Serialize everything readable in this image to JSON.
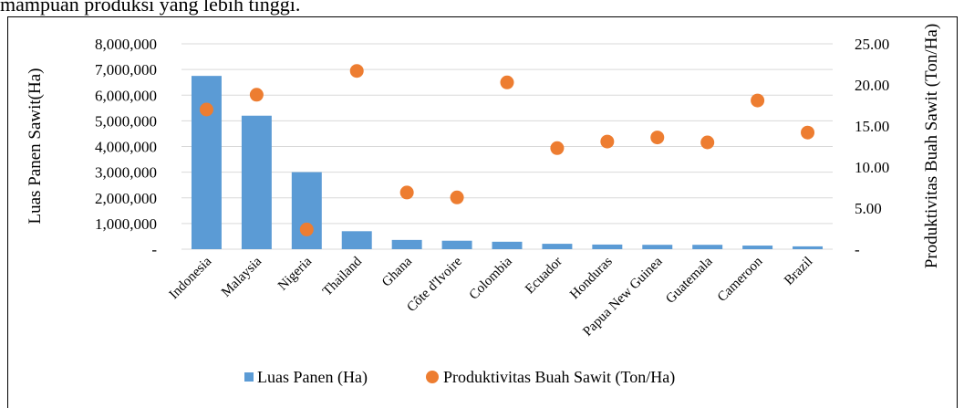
{
  "page_text": "mampuan produksi yang lebih tinggi.",
  "chart_data": {
    "type": "bar_scatter",
    "categories": [
      "Indonesia",
      "Malaysia",
      "Nigeria",
      "Thailand",
      "Ghana",
      "Côte d'Ivoire",
      "Colombia",
      "Ecuador",
      "Honduras",
      "Papua New Guinea",
      "Guatemala",
      "Cameroon",
      "Brazil"
    ],
    "series": [
      {
        "name": "Luas Panen (Ha)",
        "type": "bar",
        "color": "#5b9bd5",
        "axis": "y",
        "values": [
          6750000,
          5200000,
          3000000,
          700000,
          360000,
          330000,
          290000,
          210000,
          180000,
          170000,
          170000,
          140000,
          110000
        ]
      },
      {
        "name": "Produktivitas Buah Sawit (Ton/Ha)",
        "type": "scatter",
        "color": "#ed7d31",
        "axis": "y2",
        "values": [
          17.0,
          18.8,
          2.4,
          21.7,
          6.9,
          6.3,
          20.3,
          12.3,
          13.1,
          13.6,
          13.0,
          18.1,
          14.2
        ]
      }
    ],
    "ylabel": "Luas Panen Sawit(Ha)",
    "y2label": "Produktivitas Buah Sawit (Ton/Ha)",
    "ylim": [
      0,
      8000000
    ],
    "yticks": [
      {
        "value": 0,
        "label": "-"
      },
      {
        "value": 1000000,
        "label": "1,000,000"
      },
      {
        "value": 2000000,
        "label": "2,000,000"
      },
      {
        "value": 3000000,
        "label": "3,000,000"
      },
      {
        "value": 4000000,
        "label": "4,000,000"
      },
      {
        "value": 5000000,
        "label": "5,000,000"
      },
      {
        "value": 6000000,
        "label": "6,000,000"
      },
      {
        "value": 7000000,
        "label": "7,000,000"
      },
      {
        "value": 8000000,
        "label": "8,000,000"
      }
    ],
    "y2lim": [
      0,
      25
    ],
    "y2ticks": [
      {
        "value": 0,
        "label": "-"
      },
      {
        "value": 5,
        "label": "5.00"
      },
      {
        "value": 10,
        "label": "10.00"
      },
      {
        "value": 15,
        "label": "15.00"
      },
      {
        "value": 20,
        "label": "20.00"
      },
      {
        "value": 25,
        "label": "25.00"
      }
    ],
    "grid": true,
    "legend": "bottom"
  }
}
